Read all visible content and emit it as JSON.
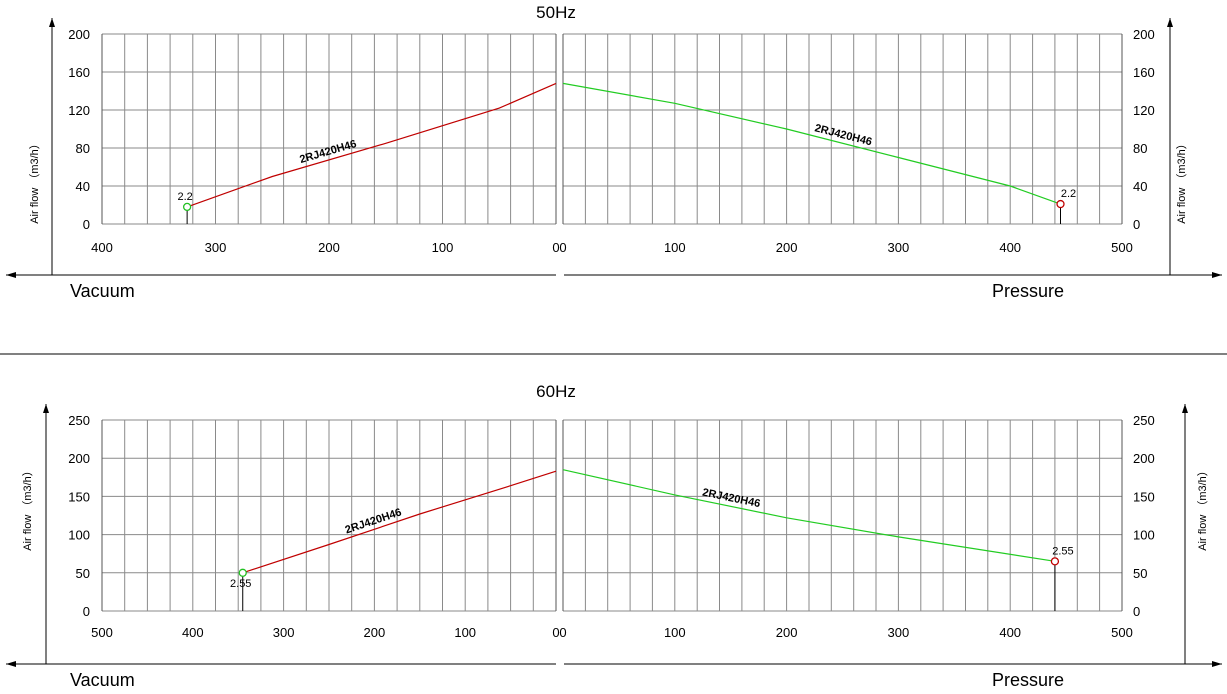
{
  "chart_data": [
    {
      "type": "line",
      "title": "50Hz",
      "ylabel": "Air flow （m3/h）",
      "ylim": [
        0,
        200
      ],
      "yticks": [
        "0",
        "40",
        "80",
        "120",
        "160",
        "200"
      ],
      "vacuum": {
        "label": "Vacuum",
        "xlim": [
          400,
          0
        ],
        "xticks": [
          "400",
          "300",
          "200",
          "100",
          "0"
        ],
        "series": [
          {
            "name": "2RJ420H46",
            "color": "#c00000",
            "x": [
              325,
              250,
              150,
              50,
              0
            ],
            "y": [
              18,
              50,
              85,
              122,
              148
            ]
          }
        ],
        "points": [
          {
            "x": 325,
            "y": 18,
            "label": "2.2",
            "color": "#22c022"
          }
        ]
      },
      "pressure": {
        "label": "Pressure",
        "xlim": [
          0,
          500
        ],
        "xticks": [
          "0",
          "100",
          "200",
          "300",
          "400",
          "500"
        ],
        "series": [
          {
            "name": "2RJ420H46",
            "color": "#22cc22",
            "x": [
              0,
              100,
              200,
              300,
              400,
              445
            ],
            "y": [
              148,
              127,
              100,
              70,
              40,
              21
            ]
          }
        ],
        "points": [
          {
            "x": 445,
            "y": 21,
            "label": "2.2",
            "color": "#c00000"
          }
        ]
      }
    },
    {
      "type": "line",
      "title": "60Hz",
      "ylabel": "Air flow （m3/h）",
      "ylim": [
        0,
        250
      ],
      "yticks": [
        "0",
        "50",
        "100",
        "150",
        "200",
        "250"
      ],
      "vacuum": {
        "label": "Vacuum",
        "xlim": [
          500,
          0
        ],
        "xticks": [
          "500",
          "400",
          "300",
          "200",
          "100",
          "0"
        ],
        "series": [
          {
            "name": "2RJ420H46",
            "color": "#c00000",
            "x": [
              345,
              250,
              150,
              50,
              0
            ],
            "y": [
              50,
              87,
              127,
              164,
              183
            ]
          }
        ],
        "points": [
          {
            "x": 345,
            "y": 50,
            "label": "2.55",
            "color": "#22c022"
          }
        ]
      },
      "pressure": {
        "label": "Pressure",
        "xlim": [
          0,
          500
        ],
        "xticks": [
          "0",
          "100",
          "200",
          "300",
          "400",
          "500"
        ],
        "series": [
          {
            "name": "2RJ420H46",
            "color": "#22cc22",
            "x": [
              0,
              100,
              200,
              300,
              440
            ],
            "y": [
              185,
              152,
              122,
              97,
              65
            ]
          }
        ],
        "points": [
          {
            "x": 440,
            "y": 65,
            "label": "2.55",
            "color": "#c00000"
          }
        ]
      }
    }
  ]
}
